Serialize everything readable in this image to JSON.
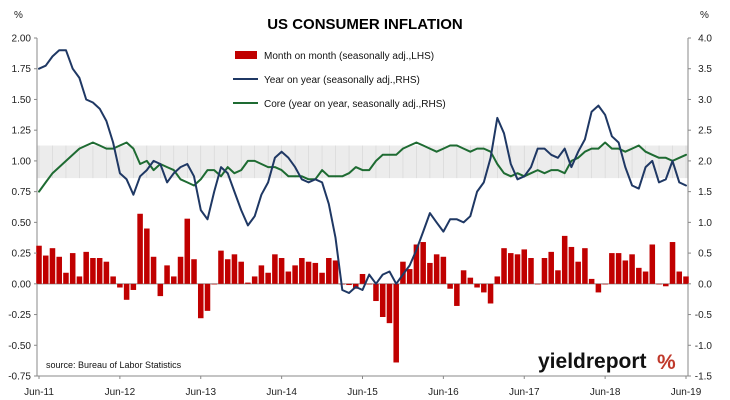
{
  "chart_data": {
    "type": "bar",
    "title": "US CONSUMER INFLATION",
    "left_unit": "%",
    "right_unit": "%",
    "left_axis": {
      "min": -0.75,
      "max": 2.0,
      "ticks": [
        "2.00",
        "1.75",
        "1.50",
        "1.25",
        "1.00",
        "0.75",
        "0.50",
        "0.25",
        "0.00",
        "-0.25",
        "-0.50",
        "-0.75"
      ]
    },
    "right_axis": {
      "min": -1.5,
      "max": 4.0,
      "ticks": [
        "4.0",
        "3.5",
        "3.0",
        "2.5",
        "2.0",
        "1.5",
        "1.0",
        "0.5",
        "0.0",
        "-0.5",
        "-1.0",
        "-1.5"
      ]
    },
    "x_labels": [
      "Jun-11",
      "Jun-12",
      "Jun-13",
      "Jun-14",
      "Jun-15",
      "Jun-16",
      "Jun-17",
      "Jun-18",
      "Jun-19"
    ],
    "shaded_band_rhs": [
      1.72,
      2.25
    ],
    "months": 97,
    "series": [
      {
        "name": "Month on month (seasonally adj.,LHS)",
        "type": "bar",
        "axis": "left",
        "color": "#c00000",
        "values": [
          0.31,
          0.23,
          0.29,
          0.22,
          0.09,
          0.25,
          0.06,
          0.26,
          0.21,
          0.21,
          0.18,
          0.06,
          -0.03,
          -0.13,
          -0.05,
          0.57,
          0.45,
          0.22,
          -0.1,
          0.15,
          0.06,
          0.22,
          0.53,
          0.2,
          -0.28,
          -0.22,
          0.0,
          0.27,
          0.2,
          0.24,
          0.18,
          0.01,
          0.06,
          0.15,
          0.09,
          0.24,
          0.21,
          0.1,
          0.15,
          0.21,
          0.18,
          0.17,
          0.09,
          0.21,
          0.19,
          0.0,
          -0.01,
          -0.04,
          0.08,
          0.0,
          -0.14,
          -0.27,
          -0.32,
          -0.64,
          0.18,
          0.12,
          0.32,
          0.34,
          0.17,
          0.24,
          0.22,
          -0.04,
          -0.18,
          0.11,
          0.05,
          -0.03,
          -0.07,
          -0.16,
          0.06,
          0.29,
          0.25,
          0.24,
          0.28,
          0.21,
          0.0,
          0.21,
          0.26,
          0.11,
          0.39,
          0.3,
          0.18,
          0.29,
          0.04,
          -0.07,
          0.0,
          0.25,
          0.25,
          0.19,
          0.24,
          0.13,
          0.1,
          0.32,
          0.0,
          -0.02,
          0.34,
          0.1,
          0.06
        ]
      },
      {
        "name": "Year on year (seasonally adj.,RHS)",
        "type": "line",
        "axis": "right",
        "color": "#1f3864",
        "values": [
          3.5,
          3.55,
          3.7,
          3.8,
          3.8,
          3.5,
          3.35,
          3.0,
          2.95,
          2.85,
          2.65,
          2.3,
          1.8,
          1.7,
          1.45,
          1.75,
          1.85,
          2.0,
          1.95,
          1.65,
          1.8,
          1.9,
          1.95,
          1.75,
          1.2,
          1.05,
          1.5,
          1.9,
          1.8,
          1.5,
          1.2,
          0.95,
          1.1,
          1.45,
          1.65,
          2.05,
          2.15,
          2.05,
          1.9,
          1.7,
          1.65,
          1.7,
          1.65,
          1.3,
          0.75,
          -0.1,
          -0.15,
          -0.05,
          -0.1,
          0.15,
          0.0,
          0.15,
          0.2,
          0.0,
          0.15,
          0.3,
          0.55,
          0.85,
          1.15,
          1.0,
          0.85,
          1.05,
          1.05,
          1.0,
          1.1,
          1.5,
          1.65,
          2.05,
          2.7,
          2.45,
          1.95,
          1.7,
          1.75,
          1.9,
          2.2,
          2.2,
          2.1,
          2.05,
          2.2,
          1.9,
          2.15,
          2.35,
          2.8,
          2.9,
          2.75,
          2.4,
          2.3,
          1.9,
          1.6,
          1.55,
          1.9,
          2.0,
          1.65,
          1.7,
          2.0,
          1.65,
          1.6
        ]
      },
      {
        "name": "Core (year on year, seasonally adj.,RHS)",
        "type": "line",
        "axis": "right",
        "color": "#1e6b32",
        "values": [
          1.5,
          1.65,
          1.8,
          1.9,
          2.0,
          2.1,
          2.2,
          2.25,
          2.3,
          2.25,
          2.2,
          2.2,
          2.25,
          2.3,
          2.2,
          1.95,
          2.0,
          1.85,
          1.95,
          1.9,
          1.85,
          1.7,
          1.65,
          1.6,
          1.7,
          1.85,
          1.85,
          1.75,
          1.9,
          1.8,
          1.85,
          2.0,
          2.0,
          1.95,
          1.9,
          1.9,
          1.85,
          1.75,
          1.75,
          1.75,
          1.7,
          1.7,
          1.85,
          1.75,
          1.75,
          1.75,
          1.8,
          1.9,
          1.85,
          1.85,
          2.0,
          2.1,
          2.1,
          2.1,
          2.2,
          2.25,
          2.3,
          2.25,
          2.2,
          2.15,
          2.2,
          2.25,
          2.25,
          2.2,
          2.15,
          2.2,
          2.2,
          2.15,
          1.95,
          1.8,
          1.75,
          1.8,
          1.75,
          1.8,
          1.85,
          1.8,
          1.85,
          1.85,
          1.8,
          2.0,
          2.05,
          2.15,
          2.2,
          2.2,
          2.3,
          2.2,
          2.2,
          2.15,
          2.2,
          2.25,
          2.15,
          2.1,
          2.05,
          2.05,
          2.0,
          2.05,
          2.1
        ]
      }
    ]
  },
  "source": "source: Bureau of Labor Statistics",
  "brand": {
    "main": "yieldreport",
    "mark": "%"
  }
}
